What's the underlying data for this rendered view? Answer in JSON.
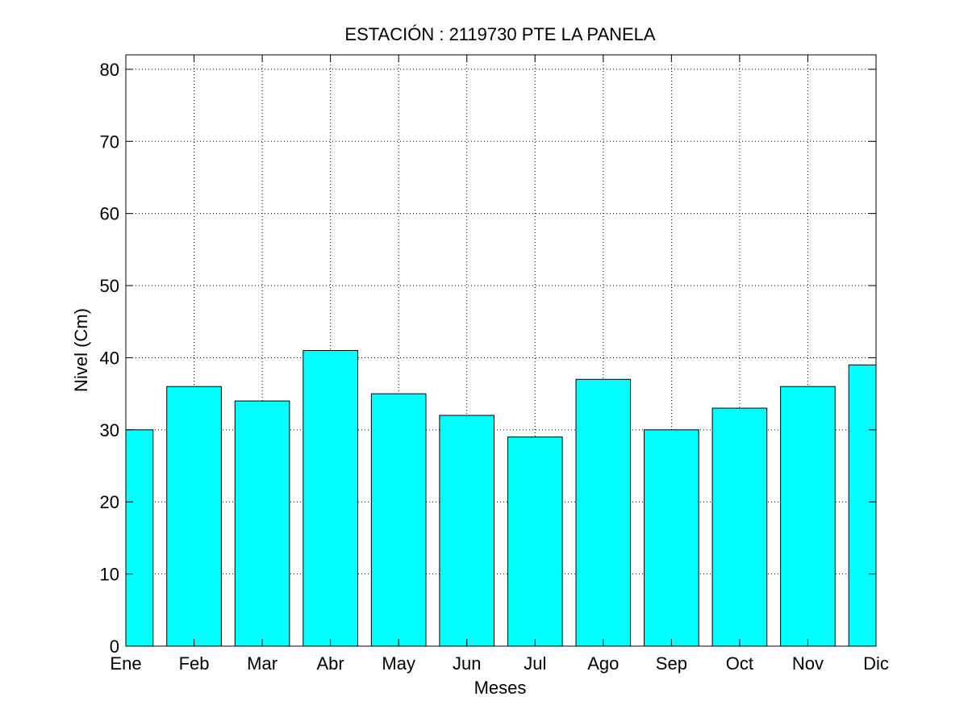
{
  "chart_data": {
    "type": "bar",
    "title": "ESTACIÓN :  2119730  PTE LA PANELA",
    "xlabel": "Meses",
    "ylabel": "Nivel (Cm)",
    "categories": [
      "Ene",
      "Feb",
      "Mar",
      "Abr",
      "May",
      "Jun",
      "Jul",
      "Ago",
      "Sep",
      "Oct",
      "Nov",
      "Dic"
    ],
    "values": [
      30,
      36,
      34,
      41,
      35,
      32,
      29,
      37,
      30,
      33,
      36,
      39
    ],
    "ylim": [
      0,
      82
    ],
    "yticks": [
      0,
      10,
      20,
      30,
      40,
      50,
      60,
      70,
      80
    ],
    "grid": true,
    "bar_color": "#00ffff",
    "bar_edge_color": "#000000"
  }
}
